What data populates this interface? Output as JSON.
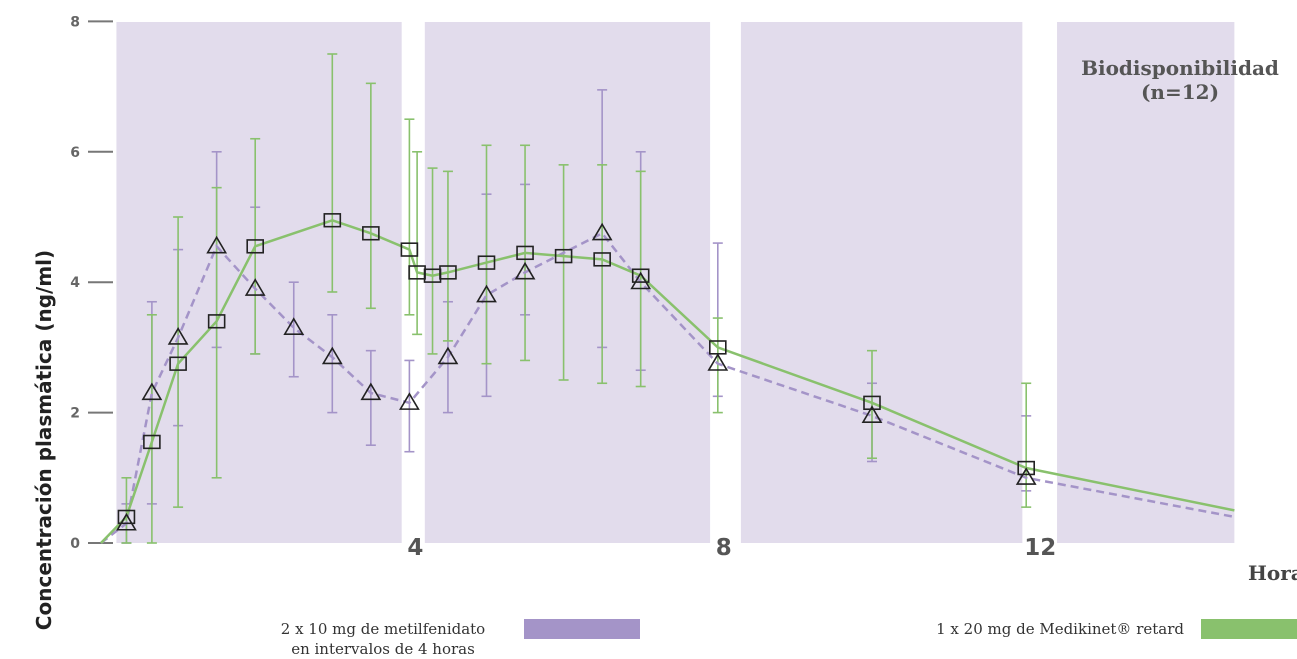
{
  "chart_data": {
    "type": "line",
    "title": "",
    "annotation": [
      "Biodisponibilidad",
      "(n=12)"
    ],
    "xlabel": "Horas",
    "ylabel": "Concentración plasmática (ng/ml)",
    "xlim": [
      0,
      14.7
    ],
    "ylim": [
      0,
      8
    ],
    "x_ticks": [
      4,
      8,
      12
    ],
    "y_ticks": [
      0,
      2,
      4,
      6,
      8
    ],
    "shaded_intervals": [
      [
        0.2,
        3.9
      ],
      [
        4.2,
        7.9
      ],
      [
        8.3,
        11.95
      ],
      [
        12.4,
        14.7
      ]
    ],
    "grid": false,
    "legend_position": "bottom",
    "colors": {
      "shade": "#e2dcec",
      "purple": "#a494c8",
      "green": "#89c16d"
    },
    "series": [
      {
        "name": "2 x 10 mg de metilfenidato en intervalos de 4 horas",
        "style": "dashed",
        "marker": "triangle",
        "color": "#a494c8",
        "points": [
          {
            "x": 0,
            "y": 0
          },
          {
            "x": 0.33,
            "y": 0.3,
            "lo": 0.0,
            "hi": 0.6
          },
          {
            "x": 0.66,
            "y": 2.3,
            "lo": 0.6,
            "hi": 3.7
          },
          {
            "x": 1.0,
            "y": 3.15,
            "lo": 1.8,
            "hi": 4.5
          },
          {
            "x": 1.5,
            "y": 4.55,
            "lo": 3.0,
            "hi": 6.0
          },
          {
            "x": 2.0,
            "y": 3.9,
            "lo": 2.9,
            "hi": 5.15
          },
          {
            "x": 2.5,
            "y": 3.3,
            "lo": 2.55,
            "hi": 4.0
          },
          {
            "x": 3.0,
            "y": 2.85,
            "lo": 2.0,
            "hi": 3.5
          },
          {
            "x": 3.5,
            "y": 2.3,
            "lo": 1.5,
            "hi": 2.95
          },
          {
            "x": 4.0,
            "y": 2.15,
            "lo": 1.4,
            "hi": 2.8
          },
          {
            "x": 4.5,
            "y": 2.85,
            "lo": 2.0,
            "hi": 3.7
          },
          {
            "x": 5.0,
            "y": 3.8,
            "lo": 2.25,
            "hi": 5.35
          },
          {
            "x": 5.5,
            "y": 4.15,
            "lo": 3.5,
            "hi": 5.5
          },
          {
            "x": 6.5,
            "y": 4.75,
            "lo": 3.0,
            "hi": 6.95
          },
          {
            "x": 7.0,
            "y": 4.0,
            "lo": 2.65,
            "hi": 6.0
          },
          {
            "x": 8.0,
            "y": 2.75,
            "lo": 2.25,
            "hi": 4.6
          },
          {
            "x": 10.0,
            "y": 1.95,
            "lo": 1.25,
            "hi": 2.45
          },
          {
            "x": 12.0,
            "y": 1.0,
            "lo": 0.8,
            "hi": 1.95
          },
          {
            "x": 14.7,
            "y": 0.4
          }
        ]
      },
      {
        "name": "1 x 20 mg de Medikinet® retard",
        "style": "solid",
        "marker": "square",
        "color": "#89c16d",
        "points": [
          {
            "x": 0,
            "y": 0
          },
          {
            "x": 0.33,
            "y": 0.4,
            "lo": 0.0,
            "hi": 1.0
          },
          {
            "x": 0.66,
            "y": 1.55,
            "lo": 0.0,
            "hi": 3.5
          },
          {
            "x": 1.0,
            "y": 2.75,
            "lo": 0.55,
            "hi": 5.0
          },
          {
            "x": 1.5,
            "y": 3.4,
            "lo": 1.0,
            "hi": 5.45
          },
          {
            "x": 2.0,
            "y": 4.55,
            "lo": 2.9,
            "hi": 6.2
          },
          {
            "x": 3.0,
            "y": 4.95,
            "lo": 3.85,
            "hi": 7.5
          },
          {
            "x": 3.5,
            "y": 4.75,
            "lo": 3.6,
            "hi": 7.05
          },
          {
            "x": 4.0,
            "y": 4.5,
            "lo": 3.5,
            "hi": 6.5
          },
          {
            "x": 4.1,
            "y": 4.15,
            "lo": 3.2,
            "hi": 6.0
          },
          {
            "x": 4.3,
            "y": 4.1,
            "lo": 2.9,
            "hi": 5.75
          },
          {
            "x": 4.5,
            "y": 4.15,
            "lo": 3.1,
            "hi": 5.7
          },
          {
            "x": 5.0,
            "y": 4.3,
            "lo": 2.75,
            "hi": 6.1
          },
          {
            "x": 5.5,
            "y": 4.45,
            "lo": 2.8,
            "hi": 6.1
          },
          {
            "x": 6.0,
            "y": 4.4,
            "lo": 2.5,
            "hi": 5.8
          },
          {
            "x": 6.5,
            "y": 4.35,
            "lo": 2.45,
            "hi": 5.8
          },
          {
            "x": 7.0,
            "y": 4.1,
            "lo": 2.4,
            "hi": 5.7
          },
          {
            "x": 8.0,
            "y": 3.0,
            "lo": 2.0,
            "hi": 3.45
          },
          {
            "x": 10.0,
            "y": 2.15,
            "lo": 1.3,
            "hi": 2.95
          },
          {
            "x": 12.0,
            "y": 1.15,
            "lo": 0.55,
            "hi": 2.45
          },
          {
            "x": 14.7,
            "y": 0.5
          }
        ]
      }
    ]
  },
  "legend": {
    "purple_line1": "2 x 10 mg de metilfenidato",
    "purple_line2": "en intervalos de 4 horas",
    "green_label": "1 x 20 mg de Medikinet® retard"
  }
}
